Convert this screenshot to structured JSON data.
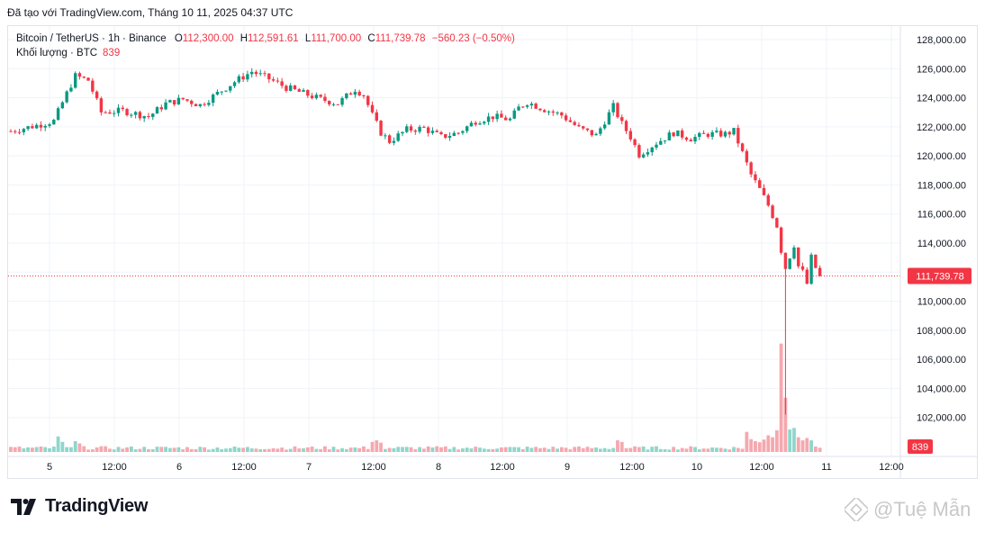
{
  "header": {
    "trained_with": "Đã tạo với TradingView.com, Tháng 10 11, 2025 04:37 UTC"
  },
  "legend": {
    "symbol": "Bitcoin / TetherUS · 1h · Binance",
    "open_label": "O",
    "open": "112,300.00",
    "high_label": "H",
    "high": "112,591.61",
    "low_label": "L",
    "low": "111,700.00",
    "close_label": "C",
    "close": "111,739.78",
    "change": "−560.23 (−0.50%)",
    "volume_label": "Khối lượng · BTC",
    "volume_value": "839"
  },
  "brand": {
    "name": "TradingView"
  },
  "watermark": {
    "text": "@Tuệ Mẫn"
  },
  "colors": {
    "up": "#089981",
    "down": "#f23645",
    "up_vol": "#8fd6cb",
    "down_vol": "#f5a8ae",
    "grid": "#f0f3fa"
  },
  "chart_data": {
    "type": "candlestick",
    "symbol": "Bitcoin / TetherUS",
    "interval": "1h",
    "exchange": "Binance",
    "y_ticks": [
      102000,
      104000,
      106000,
      108000,
      110000,
      112000,
      114000,
      116000,
      118000,
      120000,
      122000,
      124000,
      126000,
      128000
    ],
    "y_tick_labels": [
      "102,000.00",
      "104,000.00",
      "106,000.00",
      "108,000.00",
      "110,000.00",
      "112,000.00",
      "114,000.00",
      "116,000.00",
      "118,000.00",
      "120,000.00",
      "122,000.00",
      "124,000.00",
      "126,000.00",
      "128,000.00"
    ],
    "ylim": [
      100000,
      129200
    ],
    "x_labels": [
      "5",
      "12:00",
      "6",
      "12:00",
      "7",
      "12:00",
      "8",
      "12:00",
      "9",
      "12:00",
      "10",
      "12:00",
      "11",
      "12:00"
    ],
    "last_price": 111739.78,
    "last_price_label": "111,739.78",
    "last_volume_label": "839",
    "close_path": [
      {
        "t": 0,
        "c": 121700
      },
      {
        "t": 6,
        "c": 122100
      },
      {
        "t": 10,
        "c": 122400
      },
      {
        "t": 13,
        "c": 124300
      },
      {
        "t": 15,
        "c": 125500
      },
      {
        "t": 18,
        "c": 125200
      },
      {
        "t": 21,
        "c": 123000
      },
      {
        "t": 26,
        "c": 123100
      },
      {
        "t": 32,
        "c": 122700
      },
      {
        "t": 36,
        "c": 123600
      },
      {
        "t": 40,
        "c": 123900
      },
      {
        "t": 44,
        "c": 123500
      },
      {
        "t": 48,
        "c": 124300
      },
      {
        "t": 52,
        "c": 125100
      },
      {
        "t": 56,
        "c": 125800
      },
      {
        "t": 60,
        "c": 125300
      },
      {
        "t": 64,
        "c": 124700
      },
      {
        "t": 68,
        "c": 124300
      },
      {
        "t": 72,
        "c": 123900
      },
      {
        "t": 76,
        "c": 123600
      },
      {
        "t": 80,
        "c": 124600
      },
      {
        "t": 82,
        "c": 124200
      },
      {
        "t": 84,
        "c": 122800
      },
      {
        "t": 86,
        "c": 121600
      },
      {
        "t": 88,
        "c": 121000
      },
      {
        "t": 92,
        "c": 121800
      },
      {
        "t": 96,
        "c": 121900
      },
      {
        "t": 100,
        "c": 121300
      },
      {
        "t": 104,
        "c": 121600
      },
      {
        "t": 108,
        "c": 122400
      },
      {
        "t": 112,
        "c": 122700
      },
      {
        "t": 116,
        "c": 122500
      },
      {
        "t": 118,
        "c": 123300
      },
      {
        "t": 120,
        "c": 123700
      },
      {
        "t": 124,
        "c": 123200
      },
      {
        "t": 128,
        "c": 122800
      },
      {
        "t": 132,
        "c": 121900
      },
      {
        "t": 136,
        "c": 121400
      },
      {
        "t": 140,
        "c": 123400
      },
      {
        "t": 142,
        "c": 122200
      },
      {
        "t": 144,
        "c": 121300
      },
      {
        "t": 146,
        "c": 120100
      },
      {
        "t": 150,
        "c": 120900
      },
      {
        "t": 154,
        "c": 121600
      },
      {
        "t": 158,
        "c": 121200
      },
      {
        "t": 162,
        "c": 121500
      },
      {
        "t": 166,
        "c": 121500
      },
      {
        "t": 168,
        "c": 121700
      },
      {
        "t": 170,
        "c": 120200
      },
      {
        "t": 172,
        "c": 118700
      },
      {
        "t": 174,
        "c": 117700
      },
      {
        "t": 176,
        "c": 116600
      },
      {
        "t": 178,
        "c": 115200
      },
      {
        "t": 179,
        "c": 113500
      },
      {
        "t": 180,
        "c": 112300
      },
      {
        "t": 182,
        "c": 113900
      },
      {
        "t": 183,
        "c": 112400
      },
      {
        "t": 184,
        "c": 112000
      },
      {
        "t": 185,
        "c": 111200
      },
      {
        "t": 186,
        "c": 113000
      },
      {
        "t": 187,
        "c": 112300
      },
      {
        "t": 188,
        "c": 111740
      }
    ],
    "volume_spikes": [
      {
        "t": 11,
        "v": 4
      },
      {
        "t": 12,
        "v": 2.6
      },
      {
        "t": 15,
        "v": 2.8
      },
      {
        "t": 16,
        "v": 2.2
      },
      {
        "t": 84,
        "v": 2.6
      },
      {
        "t": 85,
        "v": 3
      },
      {
        "t": 86,
        "v": 2.4
      },
      {
        "t": 141,
        "v": 3
      },
      {
        "t": 142,
        "v": 2.6
      },
      {
        "t": 171,
        "v": 5.2
      },
      {
        "t": 172,
        "v": 3.3
      },
      {
        "t": 173,
        "v": 2.8
      },
      {
        "t": 174,
        "v": 2.5
      },
      {
        "t": 175,
        "v": 3.2
      },
      {
        "t": 176,
        "v": 4.3
      },
      {
        "t": 177,
        "v": 3.8
      },
      {
        "t": 178,
        "v": 5.6
      },
      {
        "t": 179,
        "v": 28
      },
      {
        "t": 180,
        "v": 14
      },
      {
        "t": 181,
        "v": 5.8
      },
      {
        "t": 182,
        "v": 6.2
      },
      {
        "t": 183,
        "v": 3.8
      },
      {
        "t": 184,
        "v": 3
      },
      {
        "t": 185,
        "v": 3.6
      },
      {
        "t": 186,
        "v": 3
      },
      {
        "t": 187,
        "v": 1.4
      }
    ],
    "extreme_wick": {
      "t": 180,
      "low": 102200
    }
  }
}
